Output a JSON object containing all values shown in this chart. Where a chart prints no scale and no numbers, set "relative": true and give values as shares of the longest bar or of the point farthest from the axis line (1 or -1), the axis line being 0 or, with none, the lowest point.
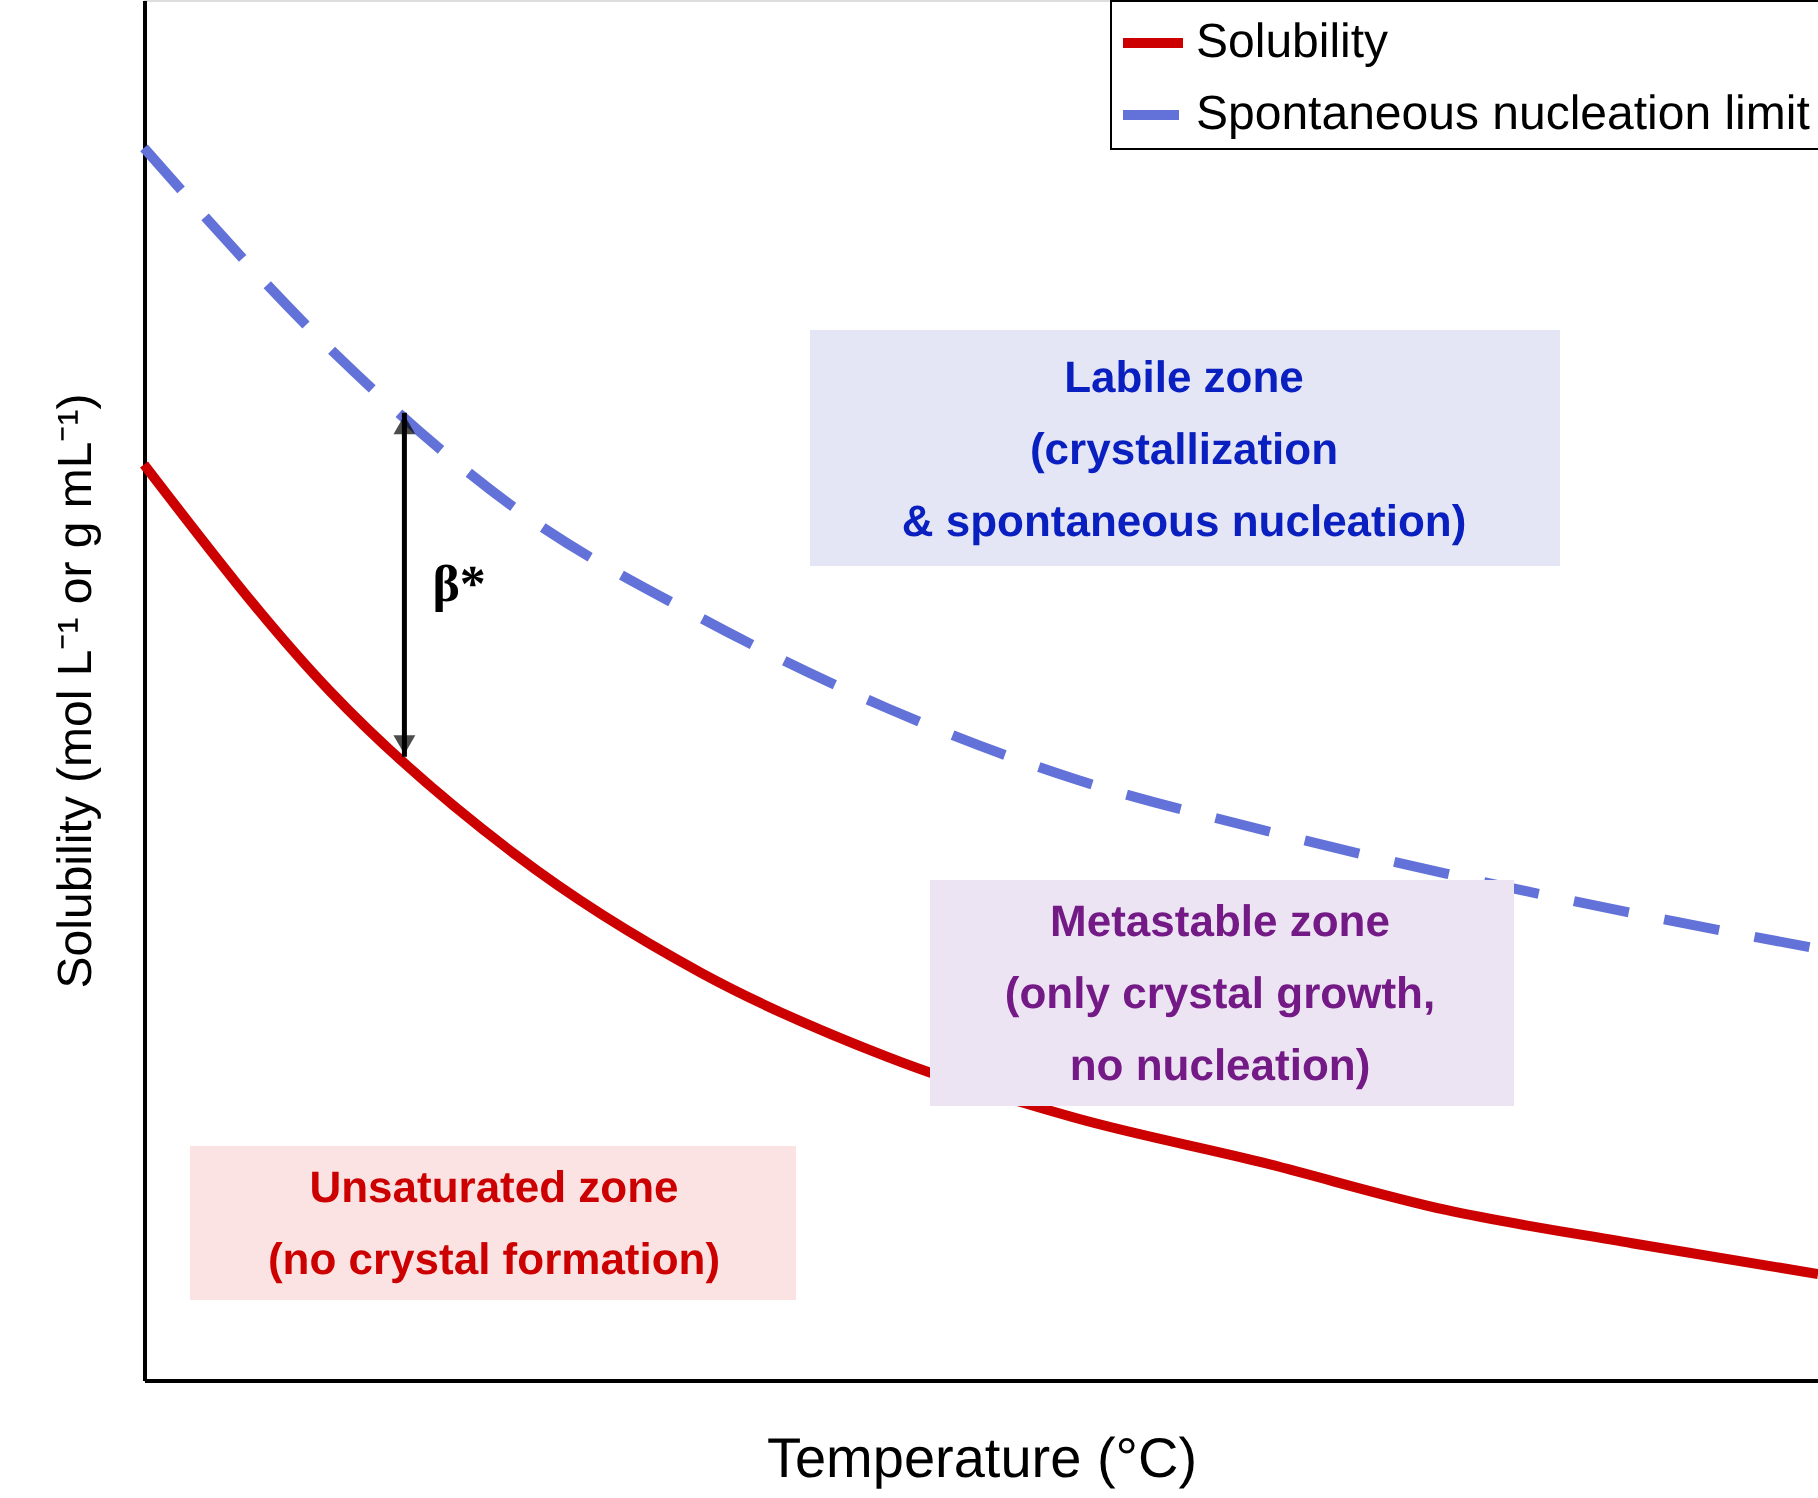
{
  "chart_data": {
    "type": "line",
    "relative": true,
    "xlabel": "Temperature (°C)",
    "ylabel": "Solubility (mol L⁻¹ or g mL⁻¹)",
    "categories": [
      null,
      null,
      null,
      null,
      null,
      null,
      null,
      null,
      null,
      null
    ],
    "series": [
      {
        "name": "Solubility",
        "color": "#cc0000",
        "line_style": "solid",
        "values": [
          0.743,
          0.559,
          0.426,
          0.33,
          0.262,
          0.213,
          0.177,
          0.138,
          0.111,
          0.086
        ]
      },
      {
        "name": "Spontaneous nucleation limit",
        "color": "#6272d8",
        "line_style": "dashed",
        "values": [
          1.0,
          0.837,
          0.707,
          0.618,
          0.545,
          0.488,
          0.447,
          0.411,
          0.379,
          0.35
        ]
      }
    ],
    "annotations": [
      "Labile zone\n(crystallization\n& spontaneous nucleation)",
      "Metastable zone\n(only crystal growth,\nno nucleation)",
      "Unsaturated zone\n(no crystal formation)",
      "β*"
    ],
    "legend": "top right",
    "tick_labels": false,
    "grid": false,
    "marker": "none"
  }
}
